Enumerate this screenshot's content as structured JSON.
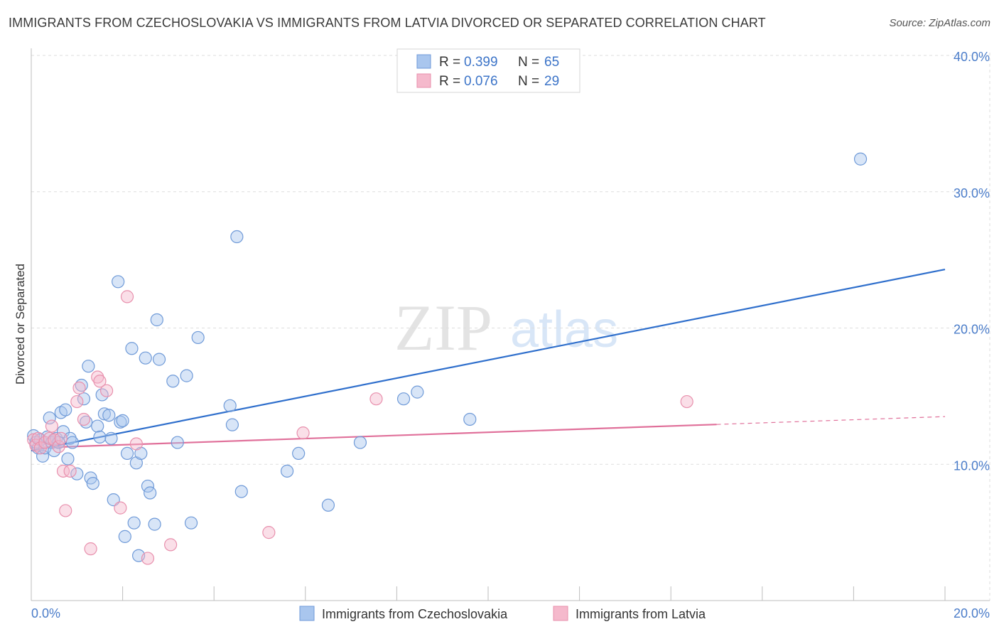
{
  "title": "IMMIGRANTS FROM CZECHOSLOVAKIA VS IMMIGRANTS FROM LATVIA DIVORCED OR SEPARATED CORRELATION CHART",
  "source": "Source: ZipAtlas.com",
  "watermark": {
    "zip": "ZIP",
    "atlas": "atlas"
  },
  "colors": {
    "blue_fill": "#a9c6ee",
    "blue_stroke": "#6f9ad8",
    "blue_line": "#2f6fcc",
    "pink_fill": "#f5b9cc",
    "pink_stroke": "#e890ad",
    "pink_line": "#e0709a",
    "grid": "#dddddd",
    "tick_text": "#4a7cc9"
  },
  "legend": {
    "rows": [
      {
        "r_label": "R =",
        "r_value": "0.399",
        "n_label": "N =",
        "n_value": "65"
      },
      {
        "r_label": "R =",
        "r_value": "0.076",
        "n_label": "N =",
        "n_value": "29"
      }
    ]
  },
  "chart_data": {
    "type": "scatter",
    "title": "IMMIGRANTS FROM CZECHOSLOVAKIA VS IMMIGRANTS FROM LATVIA DIVORCED OR SEPARATED CORRELATION CHART",
    "xlabel": "",
    "ylabel": "Divorced or Separated",
    "xlim": [
      0,
      20
    ],
    "ylim": [
      0,
      40
    ],
    "x_tick_labels": [
      "0.0%",
      "20.0%"
    ],
    "y_ticks": [
      10,
      20,
      30,
      40
    ],
    "y_tick_labels": [
      "10.0%",
      "20.0%",
      "30.0%",
      "40.0%"
    ],
    "grid": true,
    "legend_position": "top-center",
    "series": [
      {
        "name": "Immigrants from Czechoslovakia",
        "color": "blue",
        "R": 0.399,
        "N": 65,
        "trend": {
          "x": [
            0,
            20
          ],
          "y": [
            11.0,
            24.3
          ],
          "dashed_from": null
        },
        "points": [
          [
            0.05,
            12.1
          ],
          [
            0.1,
            11.6
          ],
          [
            0.15,
            11.2
          ],
          [
            0.2,
            11.8
          ],
          [
            0.25,
            10.6
          ],
          [
            0.3,
            11.2
          ],
          [
            0.35,
            12.0
          ],
          [
            0.4,
            13.4
          ],
          [
            0.45,
            11.6
          ],
          [
            0.5,
            11.0
          ],
          [
            0.55,
            11.9
          ],
          [
            0.6,
            11.6
          ],
          [
            0.65,
            13.8
          ],
          [
            0.7,
            12.4
          ],
          [
            0.75,
            14.0
          ],
          [
            0.8,
            10.4
          ],
          [
            0.85,
            11.9
          ],
          [
            0.9,
            11.6
          ],
          [
            1.0,
            9.3
          ],
          [
            1.1,
            15.8
          ],
          [
            1.15,
            14.8
          ],
          [
            1.2,
            13.1
          ],
          [
            1.25,
            17.2
          ],
          [
            1.3,
            9.0
          ],
          [
            1.35,
            8.6
          ],
          [
            1.45,
            12.8
          ],
          [
            1.5,
            12.0
          ],
          [
            1.55,
            15.1
          ],
          [
            1.6,
            13.7
          ],
          [
            1.7,
            13.6
          ],
          [
            1.75,
            11.9
          ],
          [
            1.8,
            7.4
          ],
          [
            1.9,
            23.4
          ],
          [
            1.95,
            13.1
          ],
          [
            2.0,
            13.2
          ],
          [
            2.05,
            4.7
          ],
          [
            2.1,
            10.8
          ],
          [
            2.2,
            18.5
          ],
          [
            2.25,
            5.7
          ],
          [
            2.3,
            10.1
          ],
          [
            2.35,
            3.3
          ],
          [
            2.4,
            10.8
          ],
          [
            2.5,
            17.8
          ],
          [
            2.55,
            8.4
          ],
          [
            2.6,
            7.9
          ],
          [
            2.7,
            5.6
          ],
          [
            2.75,
            20.6
          ],
          [
            2.8,
            17.7
          ],
          [
            3.1,
            16.1
          ],
          [
            3.2,
            11.6
          ],
          [
            3.4,
            16.5
          ],
          [
            3.5,
            5.7
          ],
          [
            3.65,
            19.3
          ],
          [
            4.35,
            14.3
          ],
          [
            4.4,
            12.9
          ],
          [
            4.5,
            26.7
          ],
          [
            4.6,
            8.0
          ],
          [
            5.6,
            9.5
          ],
          [
            5.85,
            10.8
          ],
          [
            6.5,
            7.0
          ],
          [
            7.2,
            11.6
          ],
          [
            8.15,
            14.8
          ],
          [
            8.45,
            15.3
          ],
          [
            9.6,
            13.3
          ],
          [
            18.15,
            32.4
          ]
        ]
      },
      {
        "name": "Immigrants from Latvia",
        "color": "pink",
        "R": 0.076,
        "N": 29,
        "trend": {
          "x": [
            0,
            20
          ],
          "y": [
            11.2,
            13.5
          ],
          "dashed_from": 15.0
        },
        "points": [
          [
            0.05,
            11.8
          ],
          [
            0.1,
            11.4
          ],
          [
            0.15,
            11.9
          ],
          [
            0.2,
            11.2
          ],
          [
            0.3,
            11.6
          ],
          [
            0.4,
            11.9
          ],
          [
            0.45,
            12.8
          ],
          [
            0.5,
            11.8
          ],
          [
            0.6,
            11.3
          ],
          [
            0.65,
            11.9
          ],
          [
            0.7,
            9.5
          ],
          [
            0.75,
            6.6
          ],
          [
            0.85,
            9.5
          ],
          [
            1.0,
            14.6
          ],
          [
            1.05,
            15.6
          ],
          [
            1.15,
            13.3
          ],
          [
            1.3,
            3.8
          ],
          [
            1.45,
            16.4
          ],
          [
            1.5,
            16.1
          ],
          [
            1.65,
            15.4
          ],
          [
            1.95,
            6.8
          ],
          [
            2.1,
            22.3
          ],
          [
            2.3,
            11.5
          ],
          [
            2.55,
            3.1
          ],
          [
            3.05,
            4.1
          ],
          [
            5.2,
            5.0
          ],
          [
            5.95,
            12.3
          ],
          [
            7.55,
            14.8
          ],
          [
            14.35,
            14.6
          ]
        ]
      }
    ]
  }
}
